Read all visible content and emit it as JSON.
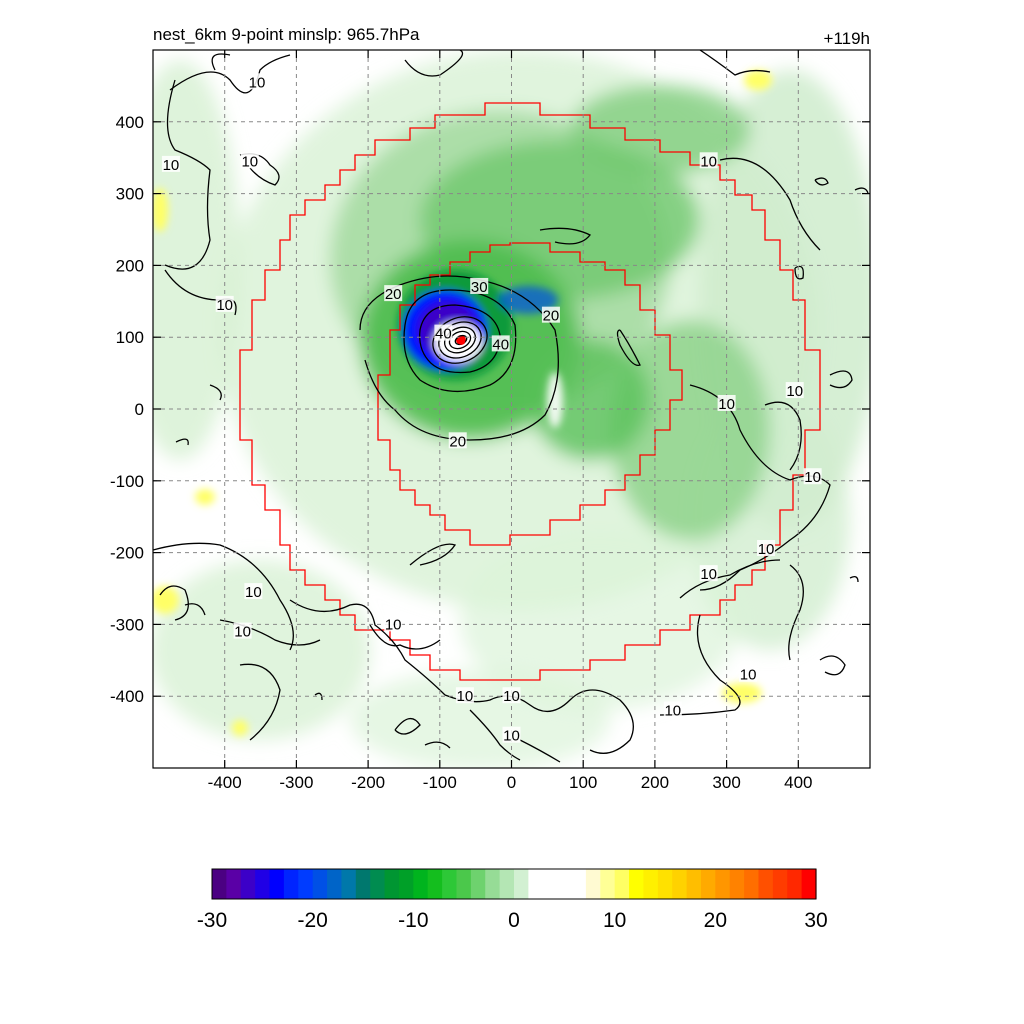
{
  "chart_data": {
    "type": "heatmap",
    "title_left": "nest_6km  9-point minslp: 965.7hPa",
    "title_right": "+119h",
    "xlim": [
      -500,
      500
    ],
    "ylim": [
      -500,
      500
    ],
    "x_ticks": [
      -400,
      -300,
      -200,
      -100,
      0,
      100,
      200,
      300,
      400
    ],
    "y_ticks": [
      400,
      300,
      200,
      100,
      0,
      -100,
      -200,
      -300,
      -400
    ],
    "grid": true,
    "grid_style": "dashed",
    "storm_center": [
      -70,
      95
    ],
    "contour_labels": [
      {
        "text": "10",
        "x": -355,
        "y": 455
      },
      {
        "text": "10",
        "x": -475,
        "y": 340
      },
      {
        "text": "10",
        "x": -365,
        "y": 345
      },
      {
        "text": "10",
        "x": -400,
        "y": 145
      },
      {
        "text": "10",
        "x": 275,
        "y": 345
      },
      {
        "text": "10",
        "x": 300,
        "y": 7
      },
      {
        "text": "10",
        "x": 395,
        "y": 25
      },
      {
        "text": "10",
        "x": 420,
        "y": -95
      },
      {
        "text": "10",
        "x": 355,
        "y": -195
      },
      {
        "text": "10",
        "x": 275,
        "y": -230
      },
      {
        "text": "10",
        "x": -360,
        "y": -255
      },
      {
        "text": "10",
        "x": -375,
        "y": -310
      },
      {
        "text": "10",
        "x": -165,
        "y": -300
      },
      {
        "text": "10",
        "x": -65,
        "y": -400
      },
      {
        "text": "10",
        "x": 0,
        "y": -400
      },
      {
        "text": "10",
        "x": 0,
        "y": -455
      },
      {
        "text": "10",
        "x": 330,
        "y": -370
      },
      {
        "text": "10",
        "x": 225,
        "y": -420
      },
      {
        "text": "20",
        "x": -165,
        "y": 160
      },
      {
        "text": "20",
        "x": 55,
        "y": 130
      },
      {
        "text": "20",
        "x": -75,
        "y": -45
      },
      {
        "text": "30",
        "x": -45,
        "y": 170
      },
      {
        "text": "40",
        "x": -15,
        "y": 90
      },
      {
        "text": "40",
        "x": -95,
        "y": 105
      }
    ],
    "colorbar": {
      "min": -30,
      "max": 30,
      "ticks": [
        -30,
        -20,
        -10,
        0,
        10,
        20,
        30
      ],
      "colors": [
        "#4b0082",
        "#5a00a6",
        "#3c00c8",
        "#2000e6",
        "#0000ff",
        "#0024ff",
        "#003cff",
        "#0050e6",
        "#0064c8",
        "#0078aa",
        "#00786e",
        "#008c50",
        "#009632",
        "#00a028",
        "#00b41e",
        "#14be1e",
        "#2dc837",
        "#4bc84b",
        "#6ed26e",
        "#96dc96",
        "#b4e6b4",
        "#d2f0d2",
        "#ffffff",
        "#ffffff",
        "#ffffff",
        "#ffffff",
        "#fffad2",
        "#ffff96",
        "#ffff64",
        "#ffff00",
        "#fff000",
        "#ffe100",
        "#ffd200",
        "#ffbe00",
        "#ffaa00",
        "#ff9600",
        "#ff8200",
        "#ff6e00",
        "#ff5000",
        "#ff3c00",
        "#ff2800",
        "#ff0000"
      ]
    }
  }
}
